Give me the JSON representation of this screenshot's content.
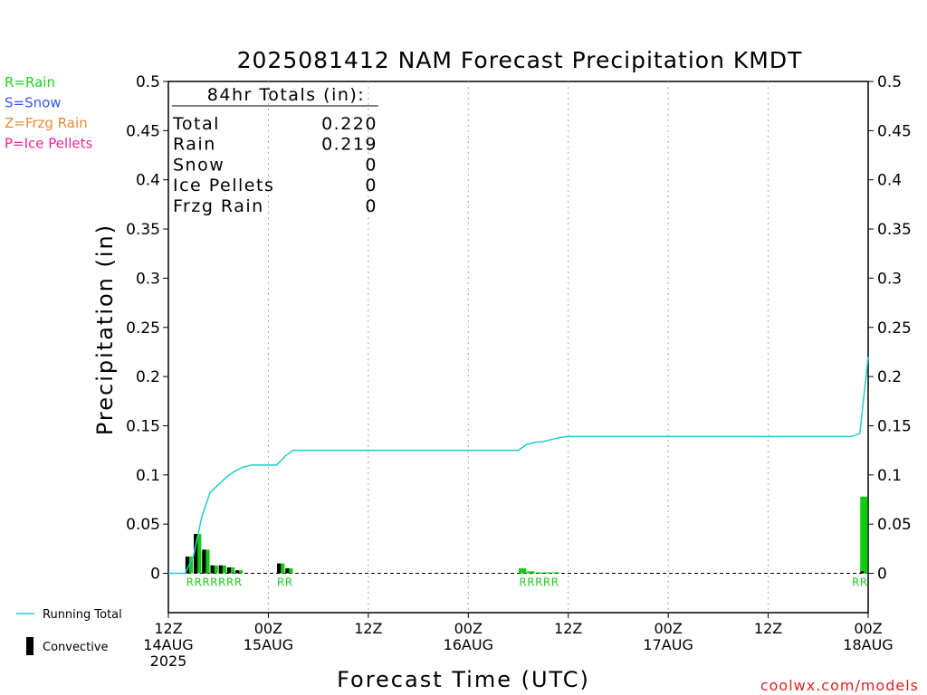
{
  "chart_data": {
    "type": "bar",
    "title": "2025081412 NAM Forecast Precipitation KMDT",
    "xlabel": "Forecast Time (UTC)",
    "ylabel": "Precipitation (in)",
    "ylim": [
      -0.04,
      0.5
    ],
    "yticks": [
      0,
      0.05,
      0.1,
      0.15,
      0.2,
      0.25,
      0.3,
      0.35,
      0.4,
      0.45,
      0.5
    ],
    "ytick_labels": [
      "0",
      "0.05",
      "0.1",
      "0.15",
      "0.2",
      "0.25",
      "0.3",
      "0.35",
      "0.4",
      "0.45",
      "0.5"
    ],
    "xlim": [
      0,
      84
    ],
    "xticks": [
      {
        "x": 0,
        "lines": [
          "12Z",
          "14AUG",
          "2025"
        ]
      },
      {
        "x": 12,
        "lines": [
          "00Z",
          "15AUG"
        ]
      },
      {
        "x": 24,
        "lines": [
          "12Z"
        ]
      },
      {
        "x": 36,
        "lines": [
          "00Z",
          "16AUG"
        ]
      },
      {
        "x": 48,
        "lines": [
          "12Z"
        ]
      },
      {
        "x": 60,
        "lines": [
          "00Z",
          "17AUG"
        ]
      },
      {
        "x": 72,
        "lines": [
          "12Z"
        ]
      },
      {
        "x": 84,
        "lines": [
          "00Z",
          "18AUG"
        ]
      }
    ],
    "grid": true,
    "legend_left": [
      {
        "text": "R=Rain",
        "color": "#22cc22"
      },
      {
        "text": "S=Snow",
        "color": "#3355ee"
      },
      {
        "text": "Z=Frzg Rain",
        "color": "#ee8833"
      },
      {
        "text": "P=Ice Pellets",
        "color": "#ee2299"
      }
    ],
    "legend_bottom": [
      {
        "name": "Running Total",
        "kind": "line",
        "color": "#22cccc"
      },
      {
        "name": "Convective",
        "kind": "bar",
        "color": "#000000"
      }
    ],
    "totals_box": {
      "header": "84hr Totals (in):",
      "rows": [
        {
          "label": "Total",
          "value": "0.220"
        },
        {
          "label": "Rain",
          "value": "0.219"
        },
        {
          "label": "Snow",
          "value": "0"
        },
        {
          "label": "Ice Pellets",
          "value": "0"
        },
        {
          "label": "Frzg Rain",
          "value": "0"
        }
      ]
    },
    "bar_x": [
      3,
      4,
      5,
      6,
      7,
      8,
      9,
      14,
      15,
      43,
      44,
      45,
      46,
      47,
      84
    ],
    "series": [
      {
        "name": "Rain",
        "color": "#11cc11",
        "values": [
          0.017,
          0.04,
          0.024,
          0.008,
          0.008,
          0.006,
          0.003,
          0.01,
          0.005,
          0.005,
          0.002,
          0.001,
          0.001,
          0.001,
          0.078
        ]
      },
      {
        "name": "Convective",
        "color": "#000000",
        "values": [
          0.017,
          0.04,
          0.024,
          0.008,
          0.008,
          0.006,
          0.003,
          0.01,
          0.005,
          0,
          0,
          0,
          0,
          0,
          0.002
        ]
      }
    ],
    "ptype_labels": [
      {
        "text": "RRRRRRR",
        "x_from": 3,
        "x_to": 9
      },
      {
        "text": "RR",
        "x_from": 14,
        "x_to": 15
      },
      {
        "text": "RRRRR",
        "x_from": 43,
        "x_to": 47
      },
      {
        "text": "RR",
        "x_from": 83,
        "x_to": 84
      }
    ],
    "running_total": {
      "color": "#22cccc",
      "x": [
        0,
        2,
        3,
        4,
        5,
        6,
        7,
        8,
        9,
        10,
        11,
        12,
        13,
        14,
        15,
        16,
        42,
        43,
        44,
        45,
        46,
        47,
        48,
        82,
        83,
        84
      ],
      "y": [
        0,
        0,
        0.017,
        0.057,
        0.082,
        0.09,
        0.098,
        0.104,
        0.108,
        0.11,
        0.11,
        0.11,
        0.11,
        0.119,
        0.125,
        0.125,
        0.125,
        0.131,
        0.133,
        0.134,
        0.136,
        0.138,
        0.139,
        0.139,
        0.142,
        0.22
      ]
    }
  },
  "credit": "coolwx.com/models"
}
